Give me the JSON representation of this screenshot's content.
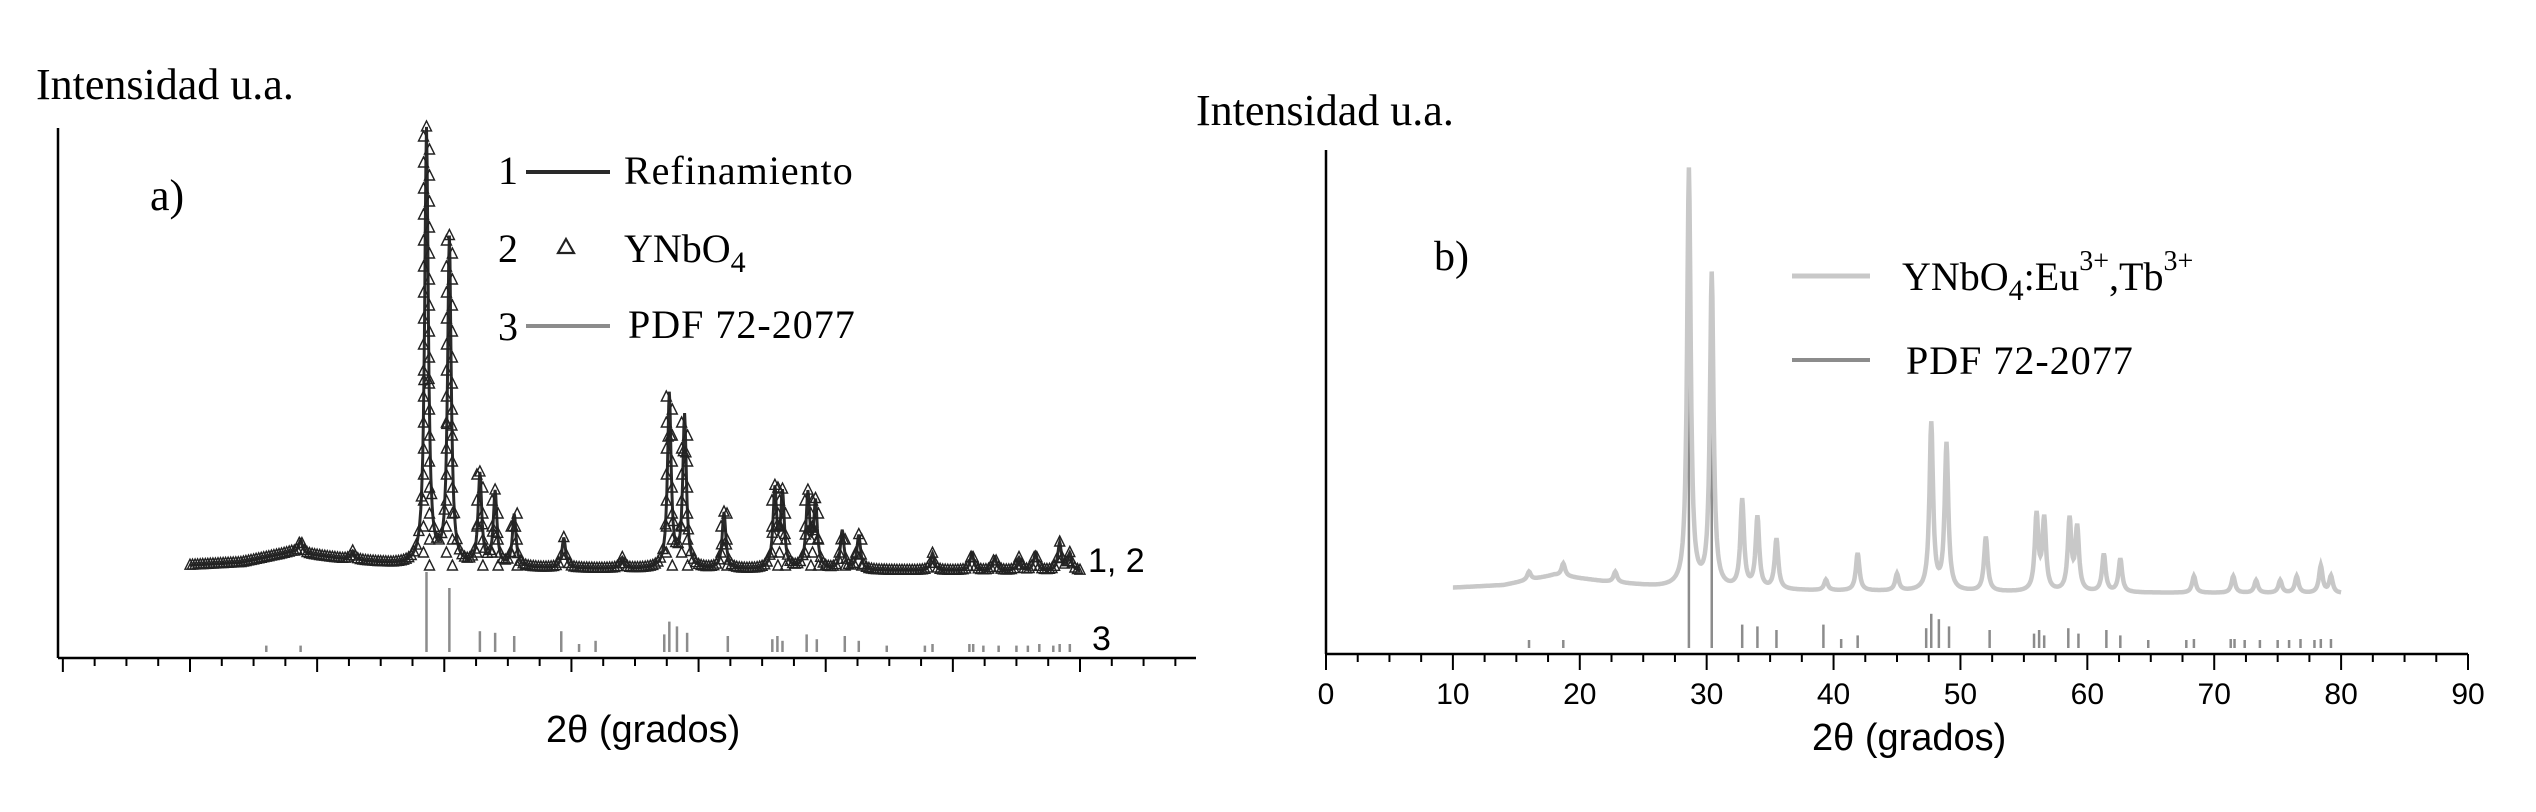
{
  "panel_a": {
    "ylabel": "Intensidad u.a.",
    "panel_label": "a)",
    "xlabel": "2θ (grados)",
    "legend": [
      {
        "num": "1",
        "label": "Refinamiento",
        "sub": ""
      },
      {
        "num": "2",
        "label": "YNbO",
        "sub": "4"
      },
      {
        "num": "3",
        "label": "PDF 72-2077",
        "sub": ""
      }
    ],
    "trace_label_12": "1, 2",
    "trace_label_3": "3"
  },
  "panel_b": {
    "ylabel": "Intensidad u.a.",
    "panel_label": "b)",
    "xlabel": "2θ (grados)",
    "legend_1_base": "YNbO",
    "legend_1_sub": "4",
    "legend_1_mid": ":Eu",
    "legend_1_sup1": "3+",
    "legend_1_tb": ",Tb",
    "legend_1_sup2": "3+",
    "legend_2": "PDF 72-2077",
    "x_ticks": [
      "0",
      "10",
      "20",
      "30",
      "40",
      "50",
      "60",
      "70",
      "80",
      "90"
    ]
  },
  "colors": {
    "refinement": "#2a2a2a",
    "observed_markers": "#222222",
    "pdf_reference": "#8c8c8c",
    "sample_b": "#c8c8c8",
    "pdf_b": "#8c8c8c",
    "axis": "#000000"
  },
  "chart_data": [
    {
      "type": "line",
      "panel": "a",
      "title": "",
      "xlabel": "2θ (grados)",
      "ylabel": "Intensidad u.a.",
      "xlim": [
        10,
        80
      ],
      "x_ticks_labeled": false,
      "series": [
        {
          "name": "Refinamiento",
          "style": "line"
        },
        {
          "name": "YNbO4",
          "style": "triangle-markers"
        },
        {
          "name": "PDF 72-2077",
          "style": "sticks"
        }
      ],
      "profile_background": [
        [
          10,
          2.0
        ],
        [
          14,
          2.6
        ],
        [
          18,
          5.0
        ],
        [
          22,
          3.4
        ],
        [
          26,
          2.2
        ],
        [
          30,
          1.6
        ],
        [
          40,
          1.2
        ],
        [
          50,
          1.0
        ],
        [
          60,
          0.8
        ],
        [
          70,
          0.7
        ],
        [
          80,
          0.6
        ]
      ],
      "peaks": [
        {
          "x": 18.7,
          "y": 3.0
        },
        {
          "x": 22.8,
          "y": 2.0
        },
        {
          "x": 28.6,
          "y": 100
        },
        {
          "x": 30.4,
          "y": 75
        },
        {
          "x": 32.8,
          "y": 21
        },
        {
          "x": 34.0,
          "y": 17
        },
        {
          "x": 35.5,
          "y": 12
        },
        {
          "x": 39.4,
          "y": 7
        },
        {
          "x": 44.0,
          "y": 2.5
        },
        {
          "x": 47.7,
          "y": 40
        },
        {
          "x": 48.9,
          "y": 35
        },
        {
          "x": 52.0,
          "y": 13
        },
        {
          "x": 56.0,
          "y": 18
        },
        {
          "x": 56.6,
          "y": 17
        },
        {
          "x": 58.6,
          "y": 17
        },
        {
          "x": 59.2,
          "y": 15
        },
        {
          "x": 61.3,
          "y": 9
        },
        {
          "x": 62.6,
          "y": 8
        },
        {
          "x": 68.4,
          "y": 4
        },
        {
          "x": 71.5,
          "y": 4
        },
        {
          "x": 73.3,
          "y": 3
        },
        {
          "x": 75.2,
          "y": 3
        },
        {
          "x": 76.5,
          "y": 4
        },
        {
          "x": 78.4,
          "y": 6.5
        },
        {
          "x": 79.2,
          "y": 4
        }
      ],
      "reference_sticks": [
        {
          "x": 16.0,
          "h": 8
        },
        {
          "x": 18.7,
          "h": 8
        },
        {
          "x": 28.6,
          "h": 100
        },
        {
          "x": 30.4,
          "h": 80
        },
        {
          "x": 32.8,
          "h": 26
        },
        {
          "x": 34.0,
          "h": 24
        },
        {
          "x": 35.5,
          "h": 20
        },
        {
          "x": 39.2,
          "h": 26
        },
        {
          "x": 40.6,
          "h": 10
        },
        {
          "x": 41.9,
          "h": 14
        },
        {
          "x": 47.3,
          "h": 22
        },
        {
          "x": 47.7,
          "h": 38
        },
        {
          "x": 48.3,
          "h": 32
        },
        {
          "x": 49.1,
          "h": 24
        },
        {
          "x": 52.3,
          "h": 20
        },
        {
          "x": 55.8,
          "h": 16
        },
        {
          "x": 56.2,
          "h": 20
        },
        {
          "x": 56.6,
          "h": 14
        },
        {
          "x": 58.5,
          "h": 22
        },
        {
          "x": 59.3,
          "h": 16
        },
        {
          "x": 61.5,
          "h": 20
        },
        {
          "x": 62.6,
          "h": 14
        },
        {
          "x": 64.8,
          "h": 8
        },
        {
          "x": 67.8,
          "h": 8
        },
        {
          "x": 68.4,
          "h": 10
        },
        {
          "x": 71.3,
          "h": 10
        },
        {
          "x": 71.6,
          "h": 10
        },
        {
          "x": 72.4,
          "h": 8
        },
        {
          "x": 73.6,
          "h": 8
        },
        {
          "x": 75.0,
          "h": 8
        },
        {
          "x": 75.9,
          "h": 8
        },
        {
          "x": 76.8,
          "h": 10
        },
        {
          "x": 77.9,
          "h": 8
        },
        {
          "x": 78.4,
          "h": 10
        },
        {
          "x": 79.2,
          "h": 10
        }
      ]
    },
    {
      "type": "line",
      "panel": "b",
      "title": "",
      "xlabel": "2θ (grados)",
      "ylabel": "Intensidad u.a.",
      "xlim": [
        0,
        90
      ],
      "x_ticks": [
        0,
        10,
        20,
        30,
        40,
        50,
        60,
        70,
        80,
        90
      ],
      "series": [
        {
          "name": "YNbO4:Eu3+,Tb3+",
          "style": "line"
        },
        {
          "name": "PDF 72-2077",
          "style": "sticks"
        }
      ],
      "profile_background": [
        [
          10,
          2.0
        ],
        [
          14,
          2.6
        ],
        [
          18,
          5.0
        ],
        [
          22,
          3.4
        ],
        [
          26,
          2.2
        ],
        [
          30,
          1.6
        ],
        [
          40,
          1.2
        ],
        [
          50,
          1.0
        ],
        [
          60,
          0.8
        ],
        [
          70,
          0.7
        ],
        [
          80,
          0.6
        ]
      ],
      "peaks": [
        {
          "x": 16.0,
          "y": 2.0
        },
        {
          "x": 18.7,
          "y": 3.0
        },
        {
          "x": 22.8,
          "y": 2.5
        },
        {
          "x": 28.6,
          "y": 100
        },
        {
          "x": 30.4,
          "y": 75
        },
        {
          "x": 32.8,
          "y": 21
        },
        {
          "x": 34.0,
          "y": 17
        },
        {
          "x": 35.5,
          "y": 12
        },
        {
          "x": 39.4,
          "y": 2.5
        },
        {
          "x": 41.9,
          "y": 9
        },
        {
          "x": 45.0,
          "y": 4
        },
        {
          "x": 47.7,
          "y": 40
        },
        {
          "x": 48.9,
          "y": 35
        },
        {
          "x": 52.0,
          "y": 13
        },
        {
          "x": 56.0,
          "y": 18
        },
        {
          "x": 56.6,
          "y": 17
        },
        {
          "x": 58.6,
          "y": 17
        },
        {
          "x": 59.2,
          "y": 15
        },
        {
          "x": 61.3,
          "y": 9
        },
        {
          "x": 62.6,
          "y": 8
        },
        {
          "x": 68.4,
          "y": 4
        },
        {
          "x": 71.5,
          "y": 4
        },
        {
          "x": 73.3,
          "y": 3
        },
        {
          "x": 75.2,
          "y": 3
        },
        {
          "x": 76.5,
          "y": 4
        },
        {
          "x": 78.4,
          "y": 6.5
        },
        {
          "x": 79.2,
          "y": 4
        }
      ],
      "reference_sticks": [
        {
          "x": 16.0,
          "h": 8
        },
        {
          "x": 18.7,
          "h": 8
        },
        {
          "x": 28.6,
          "h": 100
        },
        {
          "x": 30.4,
          "h": 80
        },
        {
          "x": 32.8,
          "h": 26
        },
        {
          "x": 34.0,
          "h": 24
        },
        {
          "x": 35.5,
          "h": 20
        },
        {
          "x": 39.2,
          "h": 26
        },
        {
          "x": 40.6,
          "h": 10
        },
        {
          "x": 41.9,
          "h": 14
        },
        {
          "x": 47.3,
          "h": 22
        },
        {
          "x": 47.7,
          "h": 38
        },
        {
          "x": 48.3,
          "h": 32
        },
        {
          "x": 49.1,
          "h": 24
        },
        {
          "x": 52.3,
          "h": 20
        },
        {
          "x": 55.8,
          "h": 16
        },
        {
          "x": 56.2,
          "h": 20
        },
        {
          "x": 56.6,
          "h": 14
        },
        {
          "x": 58.5,
          "h": 22
        },
        {
          "x": 59.3,
          "h": 16
        },
        {
          "x": 61.5,
          "h": 20
        },
        {
          "x": 62.6,
          "h": 14
        },
        {
          "x": 64.8,
          "h": 8
        },
        {
          "x": 67.8,
          "h": 8
        },
        {
          "x": 68.4,
          "h": 10
        },
        {
          "x": 71.3,
          "h": 10
        },
        {
          "x": 71.6,
          "h": 10
        },
        {
          "x": 72.4,
          "h": 8
        },
        {
          "x": 73.6,
          "h": 8
        },
        {
          "x": 75.0,
          "h": 8
        },
        {
          "x": 75.9,
          "h": 8
        },
        {
          "x": 76.8,
          "h": 10
        },
        {
          "x": 77.9,
          "h": 8
        },
        {
          "x": 78.4,
          "h": 10
        },
        {
          "x": 79.2,
          "h": 10
        }
      ]
    }
  ]
}
